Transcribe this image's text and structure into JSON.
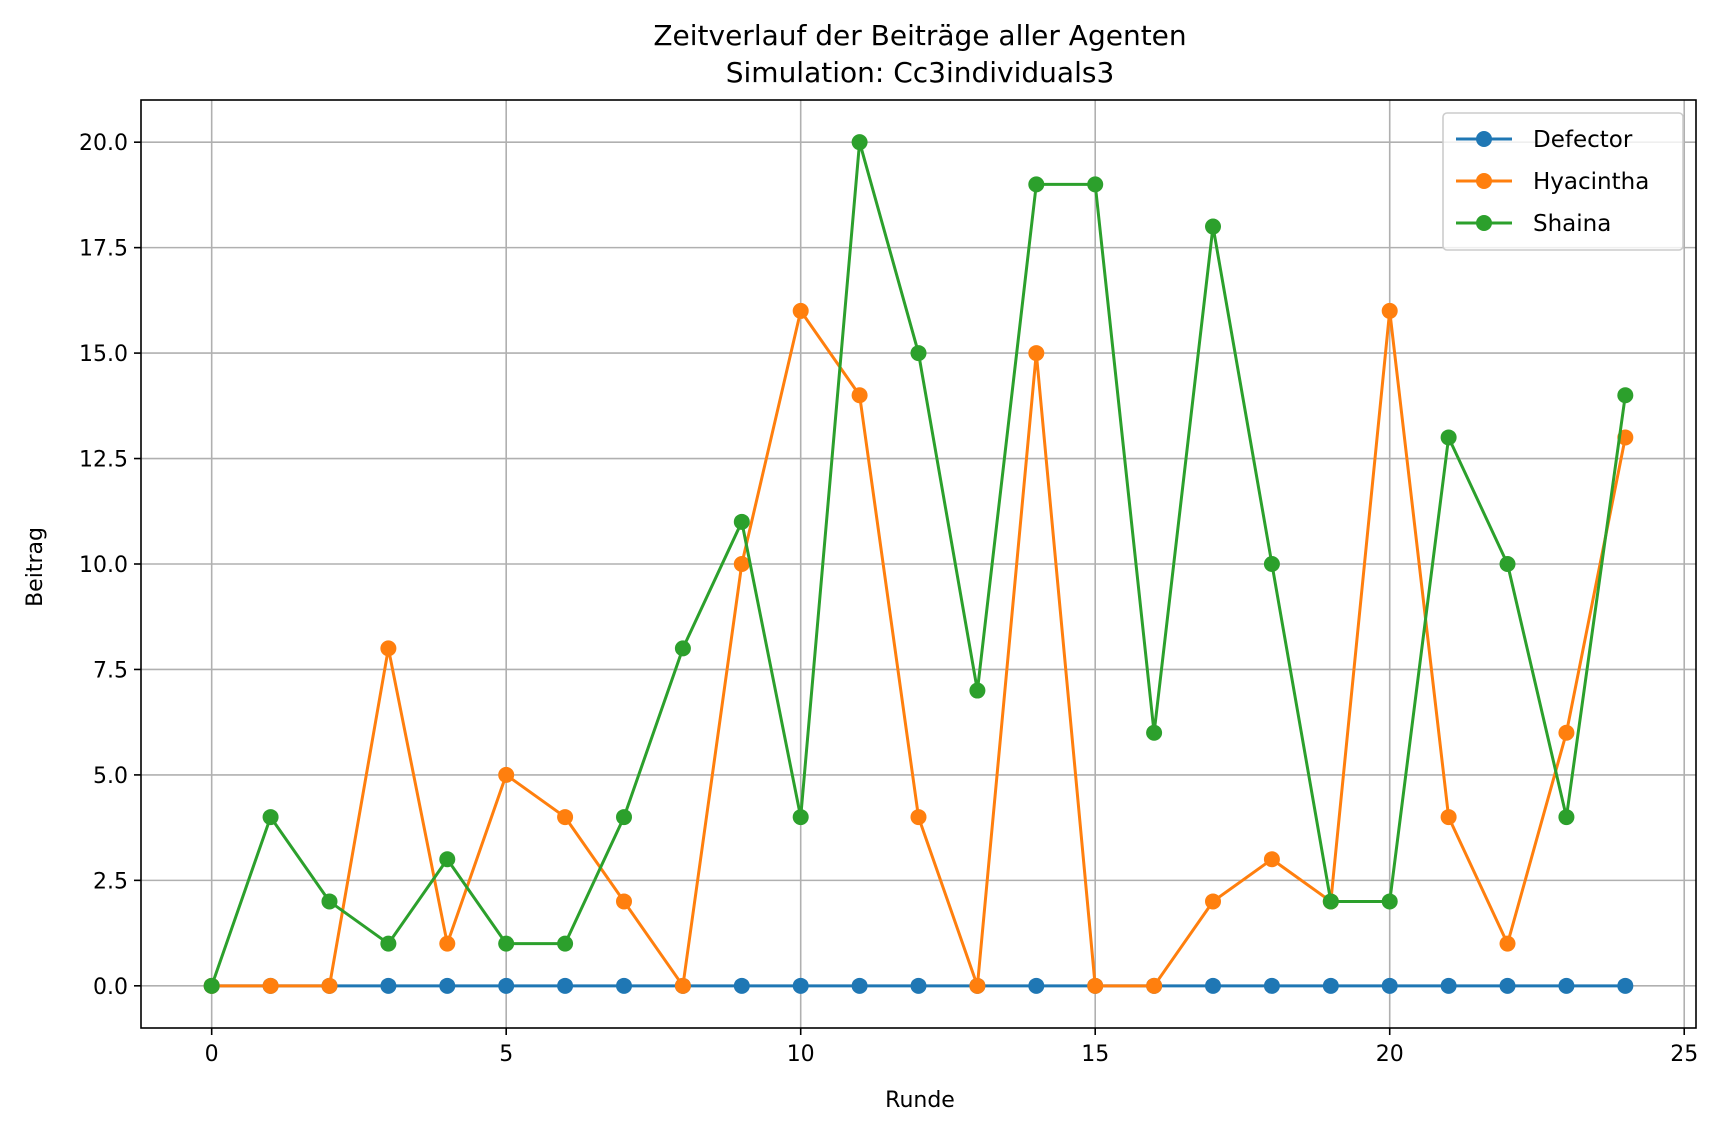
{
  "chart_data": {
    "type": "line",
    "title": "Zeitverlauf der Beiträge aller Agenten",
    "subtitle": "Simulation: Cc3individuals3",
    "xlabel": "Runde",
    "ylabel": "Beitrag",
    "xlim": [
      -1.2,
      25.2
    ],
    "ylim": [
      -1.0,
      21.0
    ],
    "xticks": [
      0,
      5,
      10,
      15,
      20,
      25
    ],
    "xtick_labels": [
      "0",
      "5",
      "10",
      "15",
      "20",
      "25"
    ],
    "yticks": [
      0.0,
      2.5,
      5.0,
      7.5,
      10.0,
      12.5,
      15.0,
      17.5,
      20.0
    ],
    "ytick_labels": [
      "0.0",
      "2.5",
      "5.0",
      "7.5",
      "10.0",
      "12.5",
      "15.0",
      "17.5",
      "20.0"
    ],
    "grid": true,
    "legend_position": "top-right",
    "x": [
      0,
      1,
      2,
      3,
      4,
      5,
      6,
      7,
      8,
      9,
      10,
      11,
      12,
      13,
      14,
      15,
      16,
      17,
      18,
      19,
      20,
      21,
      22,
      23,
      24
    ],
    "series": [
      {
        "name": "Defector",
        "color": "#1f77b4",
        "values": [
          0,
          0,
          0,
          0,
          0,
          0,
          0,
          0,
          0,
          0,
          0,
          0,
          0,
          0,
          0,
          0,
          0,
          0,
          0,
          0,
          0,
          0,
          0,
          0,
          0
        ]
      },
      {
        "name": "Hyacintha",
        "color": "#ff7f0e",
        "values": [
          0,
          0,
          0,
          8,
          1,
          5,
          4,
          2,
          0,
          10,
          16,
          14,
          4,
          0,
          15,
          0,
          0,
          2,
          3,
          2,
          16,
          4,
          1,
          6,
          13
        ]
      },
      {
        "name": "Shaina",
        "color": "#2ca02c",
        "values": [
          0,
          4,
          2,
          1,
          3,
          1,
          1,
          4,
          8,
          11,
          4,
          20,
          15,
          7,
          19,
          19,
          6,
          18,
          10,
          2,
          2,
          13,
          10,
          4,
          14
        ]
      }
    ]
  }
}
